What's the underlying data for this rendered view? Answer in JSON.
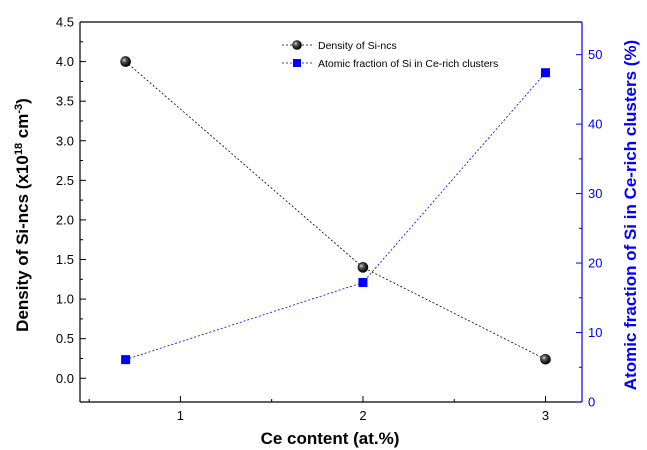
{
  "chart_data": {
    "type": "line",
    "x": [
      0.7,
      2,
      3
    ],
    "xlabel": "Ce content (at.%)",
    "xlim": [
      0.45,
      3.2
    ],
    "xticks": [
      1,
      2,
      3
    ],
    "y_left": {
      "label_pre": "Density of Si-ncs (x10",
      "label_sup1": "18",
      "label_mid": " cm",
      "label_sup2": "-3",
      "label_post": ")",
      "ylim": [
        -0.3,
        4.5
      ],
      "ticks": [
        "0.0",
        "0.5",
        "1.0",
        "1.5",
        "2.0",
        "2.5",
        "3.0",
        "3.5",
        "4.0",
        "4.5"
      ],
      "color": "#000000"
    },
    "y_right": {
      "label": "Atomic fraction of Si in Ce-rich clusters (%)",
      "ylim": [
        0,
        54.7
      ],
      "ticks": [
        "0",
        "10",
        "20",
        "30",
        "40",
        "50"
      ],
      "color": "#0000ff"
    },
    "series": [
      {
        "name": "Density of Si-ncs",
        "axis": "left",
        "values": [
          4.0,
          1.4,
          0.24
        ],
        "color": "#000000",
        "marker": "circle"
      },
      {
        "name": "Atomic fraction of Si in Ce-rich clusters",
        "axis": "right",
        "values": [
          6.1,
          17.2,
          47.4
        ],
        "color": "#0000ff",
        "marker": "square"
      }
    ],
    "grid": false,
    "legend_position": "top-center"
  }
}
